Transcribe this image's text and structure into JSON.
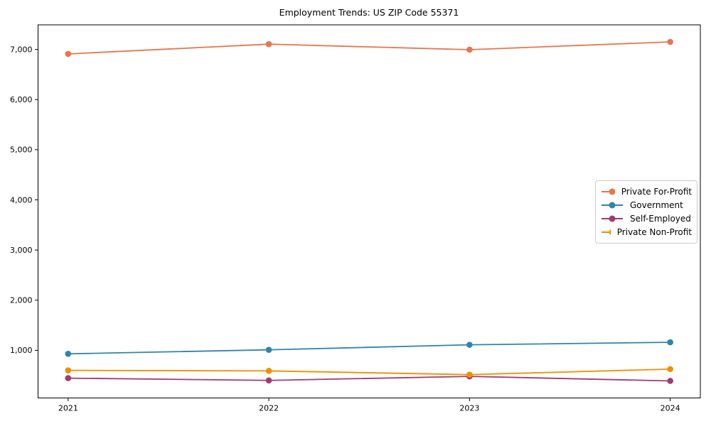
{
  "chart_data": {
    "type": "line",
    "title": "Employment Trends: US ZIP Code 55371",
    "x": [
      "2021",
      "2022",
      "2023",
      "2024"
    ],
    "series": [
      {
        "name": "Private For-Profit",
        "color": "#E8764B",
        "values": [
          6910,
          7105,
          6995,
          7150
        ]
      },
      {
        "name": "Government",
        "color": "#2E86AB",
        "values": [
          930,
          1010,
          1110,
          1160
        ]
      },
      {
        "name": "Self-Employed",
        "color": "#A23B72",
        "values": [
          445,
          400,
          480,
          390
        ]
      },
      {
        "name": "Private Non-Profit",
        "color": "#F18F01",
        "values": [
          600,
          590,
          515,
          625
        ]
      }
    ],
    "yticks": [
      1000,
      2000,
      3000,
      4000,
      5000,
      6000,
      7000
    ],
    "ylim": [
      50,
      7490
    ],
    "xlabel": "",
    "ylabel": "",
    "grid": false,
    "marker": "o",
    "legend_position": "center right",
    "axis_color": "#000000",
    "tick_label_color": "#000000"
  }
}
